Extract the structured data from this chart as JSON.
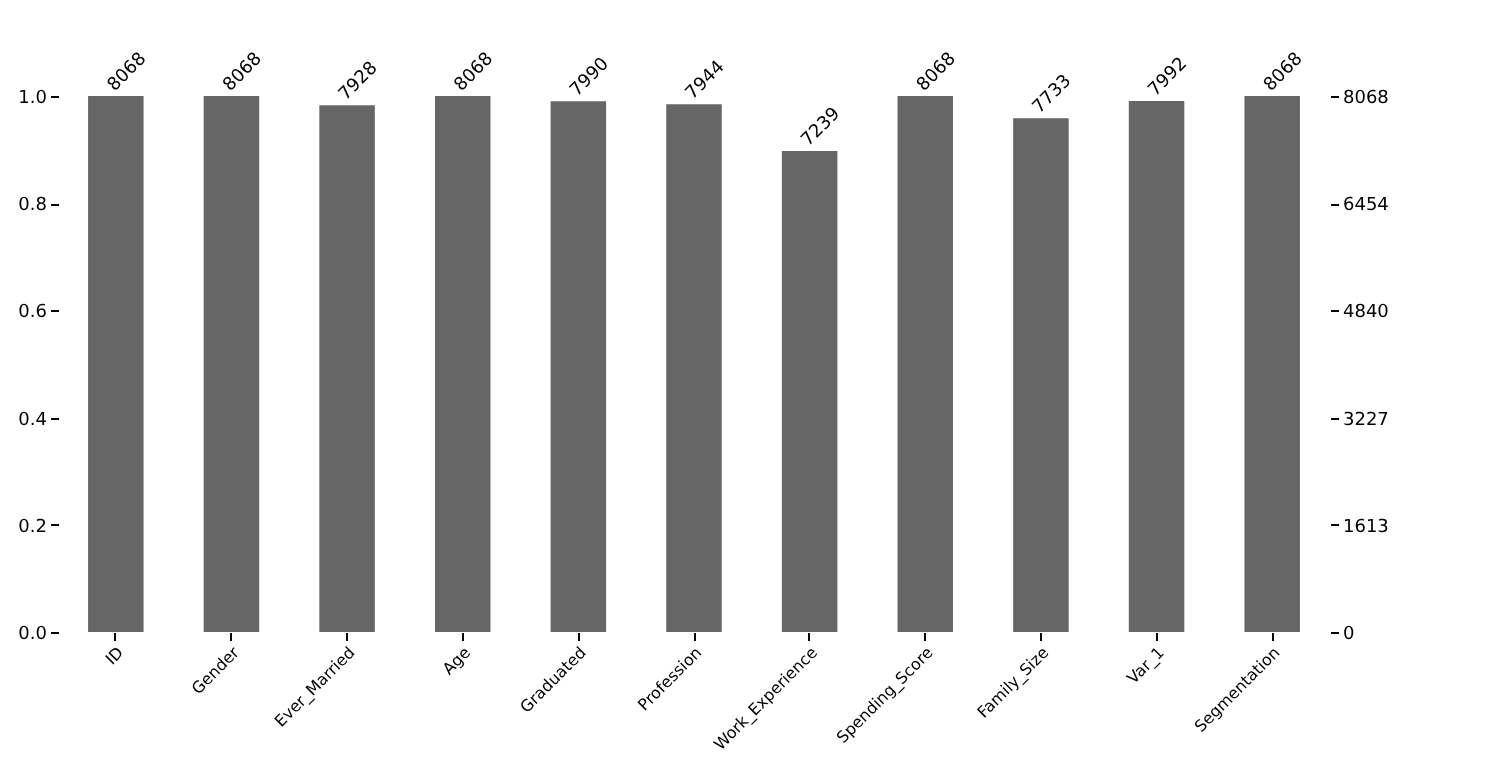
{
  "chart_data": {
    "type": "bar",
    "categories": [
      "ID",
      "Gender",
      "Ever_Married",
      "Age",
      "Graduated",
      "Profession",
      "Work_Experience",
      "Spending_Score",
      "Family_Size",
      "Var_1",
      "Segmentation"
    ],
    "series": [
      {
        "color": "#666666",
        "axis": "y2",
        "values": [
          8068,
          8068,
          7928,
          8068,
          7990,
          7944,
          7239,
          8068,
          7733,
          7992,
          8068
        ]
      }
    ],
    "data_labels": true,
    "ylim": [
      0,
      1
    ],
    "yticks": [
      {
        "value": 0,
        "label": "0.0"
      },
      0.2,
      0.4,
      0.6,
      0.8,
      {
        "value": 1,
        "label": "1.0"
      }
    ],
    "y2lim": [
      0,
      8068
    ],
    "y2ticks": [
      0,
      1613,
      3227,
      4840,
      6454,
      8068
    ],
    "grid": false
  }
}
